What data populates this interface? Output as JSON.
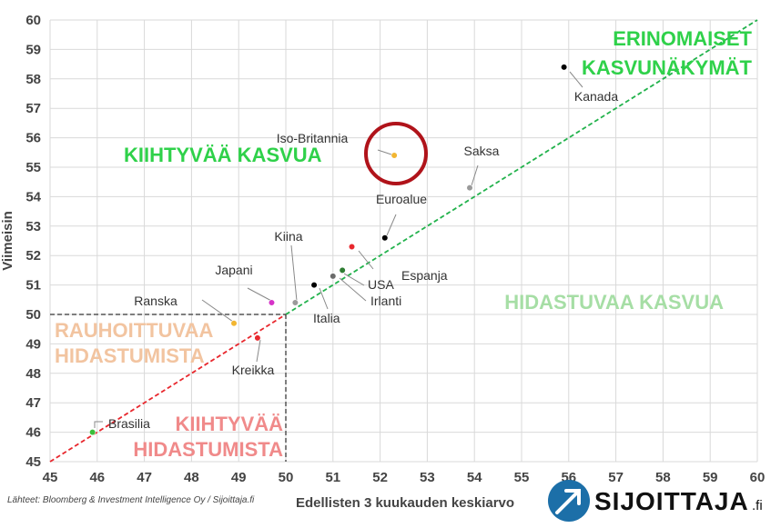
{
  "chart_data": {
    "type": "scatter",
    "xlabel": "Edellisten 3 kuukauden keskiarvo",
    "ylabel": "Viimeisin",
    "xlim": [
      45,
      60
    ],
    "ylim": [
      45,
      60
    ],
    "xticks": [
      "45",
      "46",
      "47",
      "48",
      "49",
      "50",
      "51",
      "52",
      "53",
      "54",
      "55",
      "56",
      "57",
      "58",
      "59",
      "60"
    ],
    "yticks": [
      "45",
      "46",
      "47",
      "48",
      "49",
      "50",
      "51",
      "52",
      "53",
      "54",
      "55",
      "56",
      "57",
      "58",
      "59",
      "60"
    ],
    "grid": true,
    "points": [
      {
        "name": "Kanada",
        "x": 55.9,
        "y": 58.4,
        "color": "#000000"
      },
      {
        "name": "Iso-Britannia",
        "x": 52.3,
        "y": 55.4,
        "color": "#f2b632"
      },
      {
        "name": "Saksa",
        "x": 53.9,
        "y": 54.3,
        "color": "#9a9a9a"
      },
      {
        "name": "Euroalue",
        "x": 52.1,
        "y": 52.6,
        "color": "#000000"
      },
      {
        "name": "Espanja",
        "x": 51.4,
        "y": 52.3,
        "color": "#e8272d"
      },
      {
        "name": "USA",
        "x": 51.2,
        "y": 51.5,
        "color": "#2e7d32"
      },
      {
        "name": "Irlanti",
        "x": 51.0,
        "y": 51.3,
        "color": "#6b6b6b"
      },
      {
        "name": "Italia",
        "x": 50.6,
        "y": 51.0,
        "color": "#000000"
      },
      {
        "name": "Kiina",
        "x": 50.2,
        "y": 50.4,
        "color": "#9a9a9a"
      },
      {
        "name": "Japani",
        "x": 49.7,
        "y": 50.4,
        "color": "#d633c8"
      },
      {
        "name": "Ranska",
        "x": 48.9,
        "y": 49.7,
        "color": "#f2b632"
      },
      {
        "name": "Kreikka",
        "x": 49.4,
        "y": 49.2,
        "color": "#e8272d"
      },
      {
        "name": "Brasilia",
        "x": 45.9,
        "y": 46.0,
        "color": "#3bbf3b"
      }
    ],
    "zones": [
      {
        "id": "excellent",
        "lines": [
          "ERINOMAISET",
          "KASVUNÄKYMÄT"
        ],
        "color": "#2fd14a"
      },
      {
        "id": "accelerating",
        "lines": [
          "KIIHTYVÄÄ KASVUA"
        ],
        "color": "#2fd14a"
      },
      {
        "id": "slowing",
        "lines": [
          "HIDASTUVAA KASVUA"
        ],
        "color": "#a6dea5"
      },
      {
        "id": "easing",
        "lines": [
          "RAUHOITTUVAA",
          "HIDASTUMISTA"
        ],
        "color": "#f2c4a0"
      },
      {
        "id": "accel-decline",
        "lines": [
          "KIIHTYVÄÄ",
          "HIDASTUMISTA"
        ],
        "color": "#f08a8a"
      }
    ],
    "source": "Lähteet: Bloomberg & Investment Intelligence Oy / Sijoittaja.fi"
  },
  "brand": {
    "name": "SIJOITTAJA",
    "suffix": ".fi"
  }
}
